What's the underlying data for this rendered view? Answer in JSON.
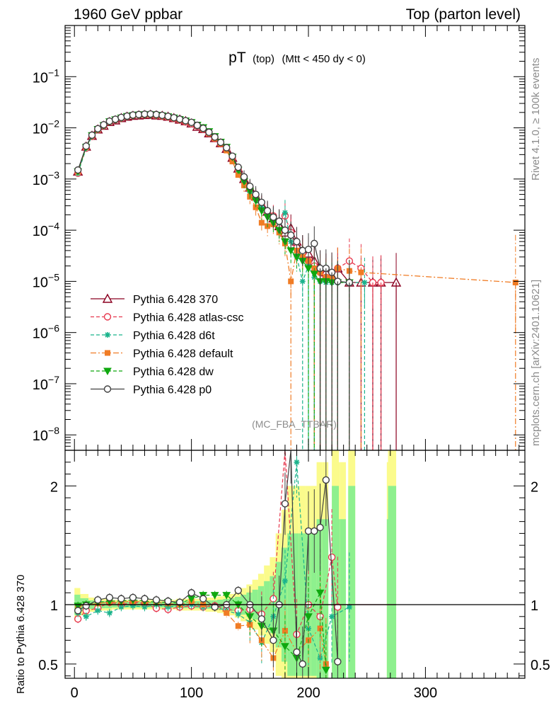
{
  "header": {
    "left": "1960 GeV ppbar",
    "right": "Top (parton level)"
  },
  "chart_data": [
    {
      "type": "line",
      "panel": "main",
      "title_main": "pT",
      "title_sub1": "(top)",
      "title_sub2": "(Mtt < 450 dy < 0)",
      "yscale": "log",
      "ylim": [
        5e-09,
        1.0
      ],
      "xlim": [
        -8,
        385
      ],
      "ytick_labels": [
        "10^-8",
        "10^-7",
        "10^-6",
        "10^-5",
        "10^-4",
        "10^-3",
        "10^-2",
        "10^-1"
      ],
      "analysis_label": "(MC_FBA_TTBAR)",
      "legend_position": "lower-left",
      "series": [
        {
          "name": "Pythia 6.428 370",
          "color": "#8b0020",
          "dash": "",
          "marker": "triangle-open",
          "x": [
            3,
            10,
            15,
            20,
            25,
            30,
            35,
            40,
            45,
            50,
            55,
            60,
            65,
            70,
            75,
            80,
            85,
            90,
            95,
            100,
            105,
            110,
            115,
            120,
            125,
            130,
            135,
            140,
            145,
            150,
            155,
            160,
            165,
            170,
            175,
            180,
            185,
            190,
            195,
            200,
            205,
            210,
            215,
            220,
            225,
            235,
            245,
            255,
            262,
            275
          ],
          "y": [
            0.0014,
            0.0043,
            0.007,
            0.0093,
            0.011,
            0.013,
            0.014,
            0.0155,
            0.0165,
            0.0172,
            0.0175,
            0.0178,
            0.018,
            0.0175,
            0.0172,
            0.0165,
            0.0155,
            0.0145,
            0.0135,
            0.0122,
            0.0105,
            0.0095,
            0.0078,
            0.0063,
            0.005,
            0.0039,
            0.0026,
            0.0016,
            0.001,
            0.00068,
            0.00046,
            0.00032,
            0.00023,
            0.00017,
            0.00012,
            9e-05,
            0.00011,
            6e-05,
            4e-05,
            3.5e-05,
            2.5e-05,
            1.8e-05,
            1.5e-05,
            1.3e-05,
            1.8e-05,
            9.5e-06,
            9.5e-06,
            9.5e-06,
            9.5e-06,
            9.5e-06
          ]
        },
        {
          "name": "Pythia 6.428 atlas-csc",
          "color": "#e7394f",
          "dash": "5,3",
          "marker": "circle-open",
          "x": [
            3,
            10,
            15,
            20,
            25,
            30,
            35,
            40,
            45,
            50,
            55,
            60,
            65,
            70,
            75,
            80,
            85,
            90,
            95,
            100,
            105,
            110,
            115,
            120,
            125,
            130,
            135,
            140,
            145,
            150,
            155,
            160,
            165,
            170,
            175,
            180,
            185,
            190,
            195,
            200,
            205,
            210,
            215,
            220,
            225,
            235,
            245,
            255,
            262
          ],
          "y": [
            0.0013,
            0.004,
            0.0068,
            0.0092,
            0.011,
            0.0132,
            0.0143,
            0.0155,
            0.0167,
            0.0175,
            0.018,
            0.018,
            0.0182,
            0.0175,
            0.017,
            0.0162,
            0.0152,
            0.0142,
            0.013,
            0.012,
            0.0108,
            0.0094,
            0.0078,
            0.0062,
            0.0049,
            0.0038,
            0.0025,
            0.0015,
            0.00095,
            0.00065,
            0.00044,
            0.0003,
            0.00021,
            0.00019,
            0.00015,
            0.00019,
            9e-05,
            4.5e-05,
            3.5e-05,
            2.5e-05,
            2e-05,
            1.5e-05,
            1.2e-05,
            1.5e-05,
            1.8e-05,
            2.5e-05,
            1.8e-05,
            9.5e-06,
            9.5e-06
          ]
        },
        {
          "name": "Pythia 6.428 d6t",
          "color": "#1ab38c",
          "dash": "5,3",
          "marker": "star",
          "x": [
            3,
            10,
            15,
            20,
            25,
            30,
            35,
            40,
            45,
            50,
            55,
            60,
            65,
            70,
            75,
            80,
            85,
            90,
            95,
            100,
            105,
            110,
            115,
            120,
            125,
            130,
            135,
            140,
            145,
            150,
            155,
            160,
            165,
            170,
            175,
            180,
            185,
            190,
            195,
            200,
            205,
            210,
            215,
            220,
            225,
            235,
            248
          ],
          "y": [
            0.0013,
            0.004,
            0.0068,
            0.0091,
            0.0108,
            0.0128,
            0.014,
            0.0152,
            0.0162,
            0.017,
            0.0175,
            0.0177,
            0.0178,
            0.0175,
            0.017,
            0.0162,
            0.0152,
            0.0144,
            0.0133,
            0.0122,
            0.0107,
            0.0093,
            0.0077,
            0.0062,
            0.0049,
            0.0037,
            0.0024,
            0.0015,
            0.00088,
            0.00055,
            0.0004,
            0.00028,
            0.0002,
            0.00016,
            0.00014,
            0.00022,
            6e-05,
            3e-05,
            1e-05,
            2e-05,
            1.2e-05,
            1e-05,
            9.5e-06,
            9.5e-06,
            9.5e-06,
            9.5e-06,
            9.5e-06
          ]
        },
        {
          "name": "Pythia 6.428 default",
          "color": "#f07c25",
          "dash": "8,3,2,3",
          "marker": "square",
          "x": [
            3,
            10,
            15,
            20,
            25,
            30,
            35,
            40,
            45,
            50,
            55,
            60,
            65,
            70,
            75,
            80,
            85,
            90,
            95,
            100,
            105,
            110,
            115,
            120,
            125,
            130,
            135,
            140,
            145,
            150,
            155,
            160,
            165,
            170,
            175,
            180,
            185,
            190,
            195,
            200,
            205,
            210,
            215,
            220,
            225,
            235,
            245,
            377
          ],
          "y": [
            0.0014,
            0.0042,
            0.007,
            0.0093,
            0.0112,
            0.0132,
            0.0145,
            0.0158,
            0.0168,
            0.0175,
            0.018,
            0.0182,
            0.0182,
            0.0178,
            0.0172,
            0.0165,
            0.0155,
            0.0145,
            0.0135,
            0.0125,
            0.011,
            0.0095,
            0.0078,
            0.0062,
            0.0049,
            0.0036,
            0.0022,
            0.0012,
            0.00075,
            0.00045,
            0.00028,
            0.00014,
            0.00012,
            0.00013,
            9e-05,
            5.5e-05,
            1e-05,
            4e-05,
            3e-05,
            2.5e-05,
            1.8e-05,
            1.5e-05,
            1.2e-05,
            1.2e-05,
            1.8e-05,
            1.6e-05,
            1.5e-05,
            9.5e-06
          ]
        },
        {
          "name": "Pythia 6.428 dw",
          "color": "#0fa80f",
          "dash": "5,3",
          "marker": "triangle-down",
          "x": [
            3,
            10,
            15,
            20,
            25,
            30,
            35,
            40,
            45,
            50,
            55,
            60,
            65,
            70,
            75,
            80,
            85,
            90,
            95,
            100,
            105,
            110,
            115,
            120,
            125,
            130,
            135,
            140,
            145,
            150,
            155,
            160,
            165,
            170,
            175,
            180,
            185,
            190,
            195,
            200,
            205,
            210,
            215,
            220,
            225,
            235
          ],
          "y": [
            0.0014,
            0.0042,
            0.0071,
            0.0094,
            0.0112,
            0.0133,
            0.0145,
            0.0157,
            0.0168,
            0.0175,
            0.018,
            0.0182,
            0.0182,
            0.0178,
            0.0173,
            0.0166,
            0.0157,
            0.0147,
            0.0138,
            0.0128,
            0.0114,
            0.0102,
            0.0085,
            0.0068,
            0.0053,
            0.0042,
            0.0027,
            0.0015,
            0.0009,
            0.00058,
            0.00038,
            0.00024,
            0.00018,
            0.00014,
            0.0001,
            6e-05,
            4e-05,
            3e-05,
            2.5e-05,
            1.8e-05,
            1.4e-05,
            1e-05,
            1e-05,
            9.5e-06,
            9.5e-06,
            9.5e-06
          ]
        },
        {
          "name": "Pythia 6.428 p0",
          "color": "#404040",
          "dash": "",
          "marker": "circle-open",
          "x": [
            3,
            10,
            15,
            20,
            25,
            30,
            35,
            40,
            45,
            50,
            55,
            60,
            65,
            70,
            75,
            80,
            85,
            90,
            95,
            100,
            105,
            110,
            115,
            120,
            125,
            130,
            135,
            140,
            145,
            150,
            155,
            160,
            165,
            170,
            175,
            180,
            185,
            190,
            195,
            200,
            205,
            210,
            215,
            220,
            225,
            235
          ],
          "y": [
            0.0015,
            0.0044,
            0.0072,
            0.0096,
            0.0115,
            0.0135,
            0.0147,
            0.016,
            0.017,
            0.0178,
            0.0182,
            0.0185,
            0.0186,
            0.0182,
            0.0176,
            0.0168,
            0.0158,
            0.0148,
            0.0138,
            0.0128,
            0.0112,
            0.0098,
            0.0082,
            0.0066,
            0.0052,
            0.0041,
            0.0028,
            0.0017,
            0.0011,
            0.00072,
            0.0005,
            0.00035,
            0.00024,
            0.00018,
            0.00015,
            0.0001,
            8e-05,
            6e-05,
            4e-05,
            4.2e-05,
            5.5e-05,
            1.8e-05,
            1.8e-05,
            1.5e-05,
            1e-05,
            9.5e-06
          ]
        }
      ]
    },
    {
      "type": "line",
      "panel": "ratio",
      "ylabel": "Ratio to Pythia 6.428 370",
      "ylim": [
        0.38,
        2.3
      ],
      "xlim": [
        -8,
        385
      ],
      "yticks": [
        0.5,
        1,
        2
      ],
      "ytick_labels": [
        "0.5",
        "1",
        "2"
      ],
      "xticks": [
        0,
        100,
        200,
        300
      ],
      "xtick_labels": [
        "0",
        "100",
        "200",
        "300"
      ],
      "reference_line": 1,
      "series": [
        {
          "name": "Pythia 6.428 atlas-csc",
          "x": [
            3,
            10,
            20,
            30,
            40,
            50,
            60,
            70,
            80,
            90,
            100,
            110,
            120,
            130,
            140,
            150,
            160,
            170,
            180,
            190,
            200,
            210,
            220,
            225
          ],
          "y": [
            0.88,
            0.95,
            0.97,
            1.02,
            1.0,
            1.02,
            1.01,
            0.97,
            0.96,
            0.98,
            0.99,
            0.98,
            0.99,
            0.96,
            0.95,
            0.96,
            0.92,
            1.05,
            2.3,
            0.75,
            1.0,
            0.9,
            1.4,
            0.98
          ]
        },
        {
          "name": "Pythia 6.428 d6t",
          "x": [
            3,
            10,
            20,
            30,
            40,
            50,
            60,
            70,
            80,
            90,
            100,
            110,
            120,
            130,
            140,
            150,
            160,
            170,
            180,
            190,
            200,
            210,
            220,
            235
          ],
          "y": [
            0.93,
            0.9,
            0.95,
            0.93,
            0.98,
            0.99,
            0.98,
            1.0,
            0.98,
            0.99,
            1.0,
            0.98,
            0.98,
            0.95,
            0.92,
            0.85,
            0.68,
            0.9,
            1.2,
            2.2,
            0.8,
            0.55,
            0.9,
            0.98
          ]
        },
        {
          "name": "Pythia 6.428 default",
          "x": [
            3,
            10,
            20,
            30,
            40,
            50,
            60,
            70,
            80,
            90,
            100,
            110,
            120,
            130,
            140,
            150,
            160,
            170,
            180,
            190,
            200,
            210,
            215
          ],
          "y": [
            0.98,
            1.0,
            1.01,
            1.02,
            1.02,
            1.03,
            1.02,
            1.02,
            1.01,
            1.0,
            1.03,
            1.0,
            0.98,
            0.93,
            0.82,
            0.83,
            0.7,
            0.55,
            0.78,
            0.6,
            0.7,
            0.8,
            0.5
          ]
        },
        {
          "name": "Pythia 6.428 dw",
          "x": [
            3,
            10,
            20,
            30,
            40,
            50,
            60,
            70,
            80,
            90,
            100,
            110,
            120,
            130,
            140,
            150,
            160,
            170,
            180,
            190,
            200,
            210,
            215
          ],
          "y": [
            0.99,
            1.0,
            1.02,
            1.03,
            1.03,
            1.04,
            1.03,
            1.02,
            1.02,
            1.01,
            1.05,
            1.08,
            1.08,
            1.08,
            1.0,
            0.9,
            0.82,
            0.78,
            0.65,
            0.55,
            0.9,
            1.1,
            0.45
          ]
        },
        {
          "name": "Pythia 6.428 p0",
          "x": [
            3,
            10,
            20,
            30,
            40,
            50,
            60,
            70,
            80,
            90,
            100,
            110,
            120,
            130,
            140,
            150,
            160,
            170,
            175,
            180,
            185,
            190,
            195,
            200,
            205,
            210,
            215,
            225
          ],
          "y": [
            0.95,
            0.99,
            1.04,
            1.06,
            1.05,
            1.06,
            1.05,
            1.04,
            1.03,
            1.02,
            1.1,
            1.05,
            0.98,
            1.0,
            1.12,
            1.0,
            0.88,
            0.7,
            1.0,
            1.85,
            2.3,
            0.6,
            0.5,
            1.62,
            1.62,
            1.65,
            2.05,
            0.52
          ]
        },
        {
          "name": "Pythia 6.428 370",
          "x": [
            3,
            50,
            100,
            150,
            200,
            250,
            275
          ],
          "y": [
            1,
            1,
            1,
            1,
            1,
            1,
            1
          ]
        }
      ]
    }
  ],
  "side_labels": {
    "rivet": "Rivet 4.1.0, ≥ 100k events",
    "mcplots": "mcplots.cern.ch [arXiv:2401.10621]"
  },
  "colors": {
    "axis": "#000000",
    "band_green": "#8ef08e",
    "band_yellow": "#fbfb8c",
    "grey_text": "#8c8c8c"
  }
}
